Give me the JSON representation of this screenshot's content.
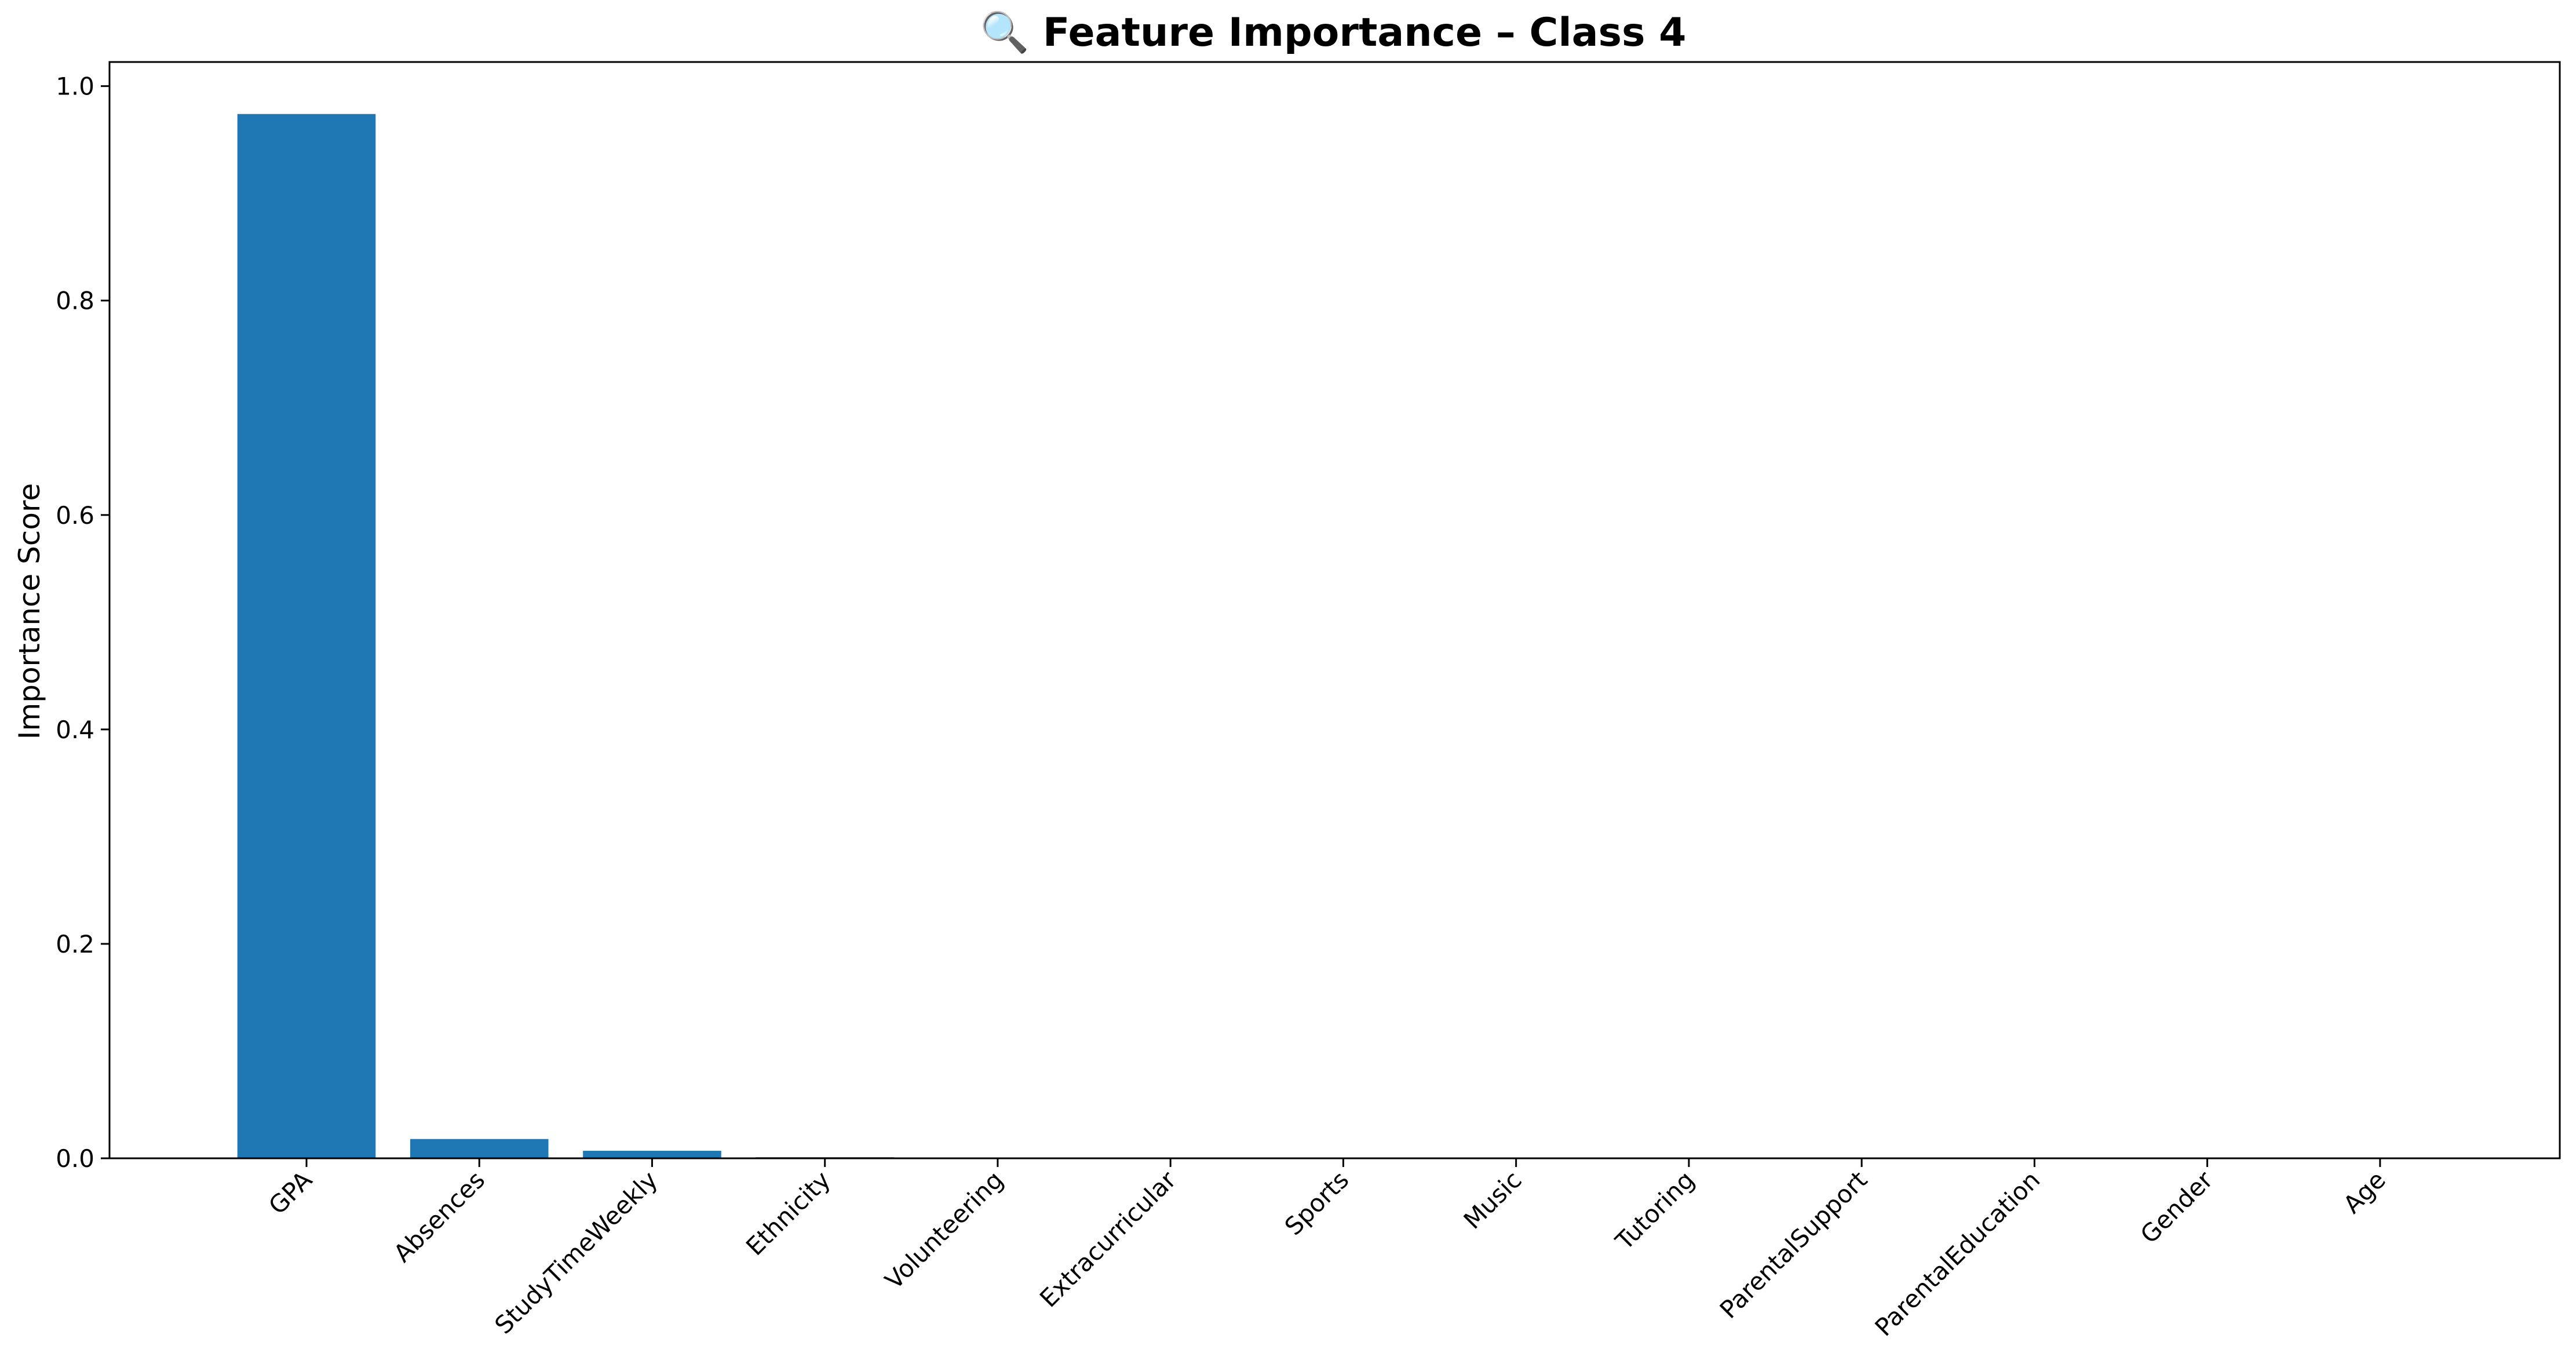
{
  "chart_data": {
    "type": "bar",
    "title": "🔍 Feature Importance – Class 4",
    "xlabel": "",
    "ylabel": "Importance Score",
    "categories": [
      "GPA",
      "Absences",
      "StudyTimeWeekly",
      "Ethnicity",
      "Volunteering",
      "Extracurricular",
      "Sports",
      "Music",
      "Tutoring",
      "ParentalSupport",
      "ParentalEducation",
      "Gender",
      "Age"
    ],
    "values": [
      0.974,
      0.018,
      0.007,
      0.001,
      0,
      0,
      0,
      0,
      0,
      0,
      0,
      0,
      0
    ],
    "ylim": [
      0,
      1.0225
    ],
    "yticks": [
      0.0,
      0.2,
      0.4,
      0.6,
      0.8,
      1.0
    ],
    "ytick_labels": [
      "0.0",
      "0.2",
      "0.4",
      "0.6",
      "0.8",
      "1.0"
    ],
    "bar_color": "#1f77b4",
    "grid": false,
    "legend": "none"
  }
}
